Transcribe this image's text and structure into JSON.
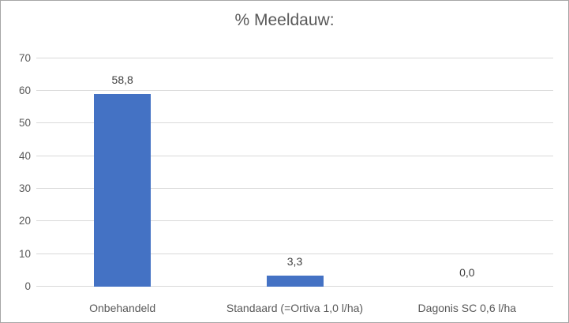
{
  "chart_data": {
    "type": "bar",
    "title": "% Meeldauw:",
    "categories": [
      "Onbehandeld",
      "Standaard (=Ortiva 1,0 l/ha)",
      "Dagonis SC 0,6 l/ha"
    ],
    "values": [
      58.8,
      3.3,
      0.0
    ],
    "value_labels": [
      "58,8",
      "3,3",
      "0,0"
    ],
    "xlabel": "",
    "ylabel": "",
    "ylim": [
      0,
      70
    ],
    "y_ticks": [
      0,
      10,
      20,
      30,
      40,
      50,
      60,
      70
    ],
    "grid": true,
    "legend_position": "none",
    "colors": {
      "bar": "#4472C4",
      "gridline": "#d9d9d9",
      "axis_text": "#595959",
      "data_label_text": "#404040",
      "title_text": "#595959",
      "chart_border": "#a6a6a6",
      "background": "#ffffff"
    }
  }
}
